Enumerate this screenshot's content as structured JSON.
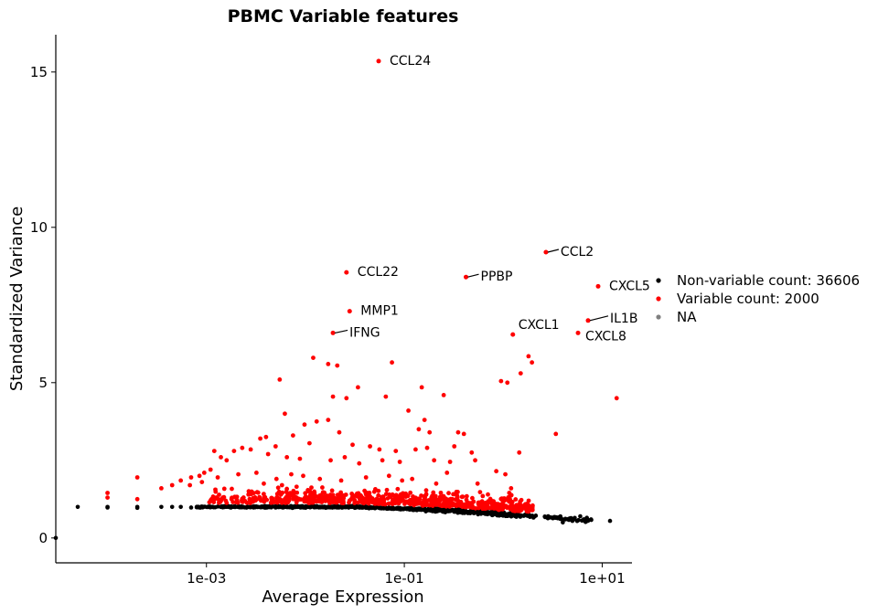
{
  "chart_data": {
    "type": "scatter",
    "title": "PBMC Variable features",
    "xlabel": "Average Expression",
    "ylabel": "Standardized Variance",
    "x_scale": "log10",
    "xlim": [
      3e-05,
      20
    ],
    "ylim": [
      -0.8,
      16.2
    ],
    "x_ticks": [
      {
        "value": 0.001,
        "label": "1e-03"
      },
      {
        "value": 0.1,
        "label": "1e-01"
      },
      {
        "value": 10,
        "label": "1e+01"
      }
    ],
    "y_ticks": [
      {
        "value": 0,
        "label": "0"
      },
      {
        "value": 5,
        "label": "5"
      },
      {
        "value": 10,
        "label": "10"
      },
      {
        "value": 15,
        "label": "15"
      }
    ],
    "legend": {
      "position": "right",
      "entries": [
        {
          "label": "Non-variable count: 36606",
          "color": "#000000"
        },
        {
          "label": "Variable count: 2000",
          "color": "#ff0000"
        },
        {
          "label": "NA",
          "color": "#808080"
        }
      ]
    },
    "colors": {
      "nonvariable": "#000000",
      "variable": "#ff0000"
    },
    "labeled_genes": [
      {
        "name": "CCL24",
        "x": 0.055,
        "y": 15.35
      },
      {
        "name": "CCL2",
        "x": 2.7,
        "y": 9.2
      },
      {
        "name": "PPBP",
        "x": 0.42,
        "y": 8.4
      },
      {
        "name": "CCL22",
        "x": 0.026,
        "y": 8.55
      },
      {
        "name": "CXCL5",
        "x": 9.1,
        "y": 8.1
      },
      {
        "name": "MMP1",
        "x": 0.028,
        "y": 7.3
      },
      {
        "name": "IL1B",
        "x": 7.2,
        "y": 7.0
      },
      {
        "name": "IFNG",
        "x": 0.019,
        "y": 6.6
      },
      {
        "name": "CXCL1",
        "x": 1.25,
        "y": 6.55
      },
      {
        "name": "CXCL8",
        "x": 5.7,
        "y": 6.6
      }
    ],
    "variable_points": [
      [
        1.8,
        5.85
      ],
      [
        1.95,
        5.65
      ],
      [
        1.1,
        5.0
      ],
      [
        0.95,
        5.05
      ],
      [
        1.5,
        5.3
      ],
      [
        3.4,
        3.35
      ],
      [
        14,
        4.5
      ],
      [
        0.012,
        5.8
      ],
      [
        0.017,
        5.6
      ],
      [
        0.021,
        5.55
      ],
      [
        0.0055,
        5.1
      ],
      [
        0.075,
        5.65
      ],
      [
        0.034,
        4.85
      ],
      [
        0.019,
        4.55
      ],
      [
        0.026,
        4.5
      ],
      [
        0.065,
        4.55
      ],
      [
        0.15,
        4.85
      ],
      [
        0.25,
        4.6
      ],
      [
        0.11,
        4.1
      ],
      [
        0.0062,
        4.0
      ],
      [
        0.013,
        3.75
      ],
      [
        0.017,
        3.8
      ],
      [
        0.0098,
        3.65
      ],
      [
        0.16,
        3.8
      ],
      [
        0.14,
        3.5
      ],
      [
        0.18,
        3.4
      ],
      [
        0.35,
        3.4
      ],
      [
        0.4,
        3.35
      ],
      [
        0.0035,
        3.2
      ],
      [
        0.004,
        3.25
      ],
      [
        0.0075,
        3.3
      ],
      [
        0.011,
        3.05
      ],
      [
        0.022,
        3.4
      ],
      [
        0.005,
        2.95
      ],
      [
        0.0028,
        2.85
      ],
      [
        0.0023,
        2.9
      ],
      [
        0.0019,
        2.8
      ],
      [
        0.03,
        3.0
      ],
      [
        0.045,
        2.95
      ],
      [
        0.056,
        2.85
      ],
      [
        0.082,
        2.8
      ],
      [
        0.13,
        2.85
      ],
      [
        0.17,
        2.9
      ],
      [
        0.32,
        2.95
      ],
      [
        0.48,
        2.75
      ],
      [
        0.52,
        2.5
      ],
      [
        1.45,
        2.75
      ],
      [
        0.0012,
        2.8
      ],
      [
        0.0014,
        2.6
      ],
      [
        0.0016,
        2.5
      ],
      [
        0.0042,
        2.7
      ],
      [
        0.0065,
        2.6
      ],
      [
        0.0088,
        2.55
      ],
      [
        0.018,
        2.5
      ],
      [
        0.025,
        2.6
      ],
      [
        0.035,
        2.4
      ],
      [
        0.06,
        2.5
      ],
      [
        0.09,
        2.45
      ],
      [
        0.2,
        2.5
      ],
      [
        0.29,
        2.45
      ],
      [
        0.00095,
        2.1
      ],
      [
        0.0011,
        2.2
      ],
      [
        0.00085,
        2.0
      ],
      [
        0.0007,
        1.95
      ],
      [
        0.00055,
        1.85
      ],
      [
        0.00045,
        1.7
      ],
      [
        0.00035,
        1.6
      ],
      [
        0.0002,
        1.95
      ],
      [
        0.0001,
        1.3
      ],
      [
        0.0001,
        1.45
      ],
      [
        0.0002,
        1.25
      ],
      [
        0.00068,
        1.7
      ],
      [
        0.0009,
        1.8
      ],
      [
        0.0013,
        1.95
      ],
      [
        0.0021,
        2.05
      ],
      [
        0.0032,
        2.1
      ],
      [
        0.0051,
        1.9
      ],
      [
        0.0072,
        2.05
      ],
      [
        0.0095,
        2.0
      ],
      [
        0.014,
        1.9
      ],
      [
        0.023,
        1.85
      ],
      [
        0.041,
        1.95
      ],
      [
        0.07,
        2.0
      ],
      [
        0.095,
        1.85
      ],
      [
        0.12,
        1.9
      ],
      [
        0.21,
        1.75
      ],
      [
        0.27,
        2.1
      ],
      [
        0.55,
        1.75
      ],
      [
        0.85,
        2.15
      ],
      [
        1.05,
        2.05
      ],
      [
        1.2,
        1.6
      ],
      [
        1.15,
        1.45
      ],
      [
        0.7,
        1.4
      ],
      [
        0.62,
        1.35
      ],
      [
        0.0038,
        1.75
      ],
      [
        0.0058,
        1.7
      ]
    ]
  }
}
